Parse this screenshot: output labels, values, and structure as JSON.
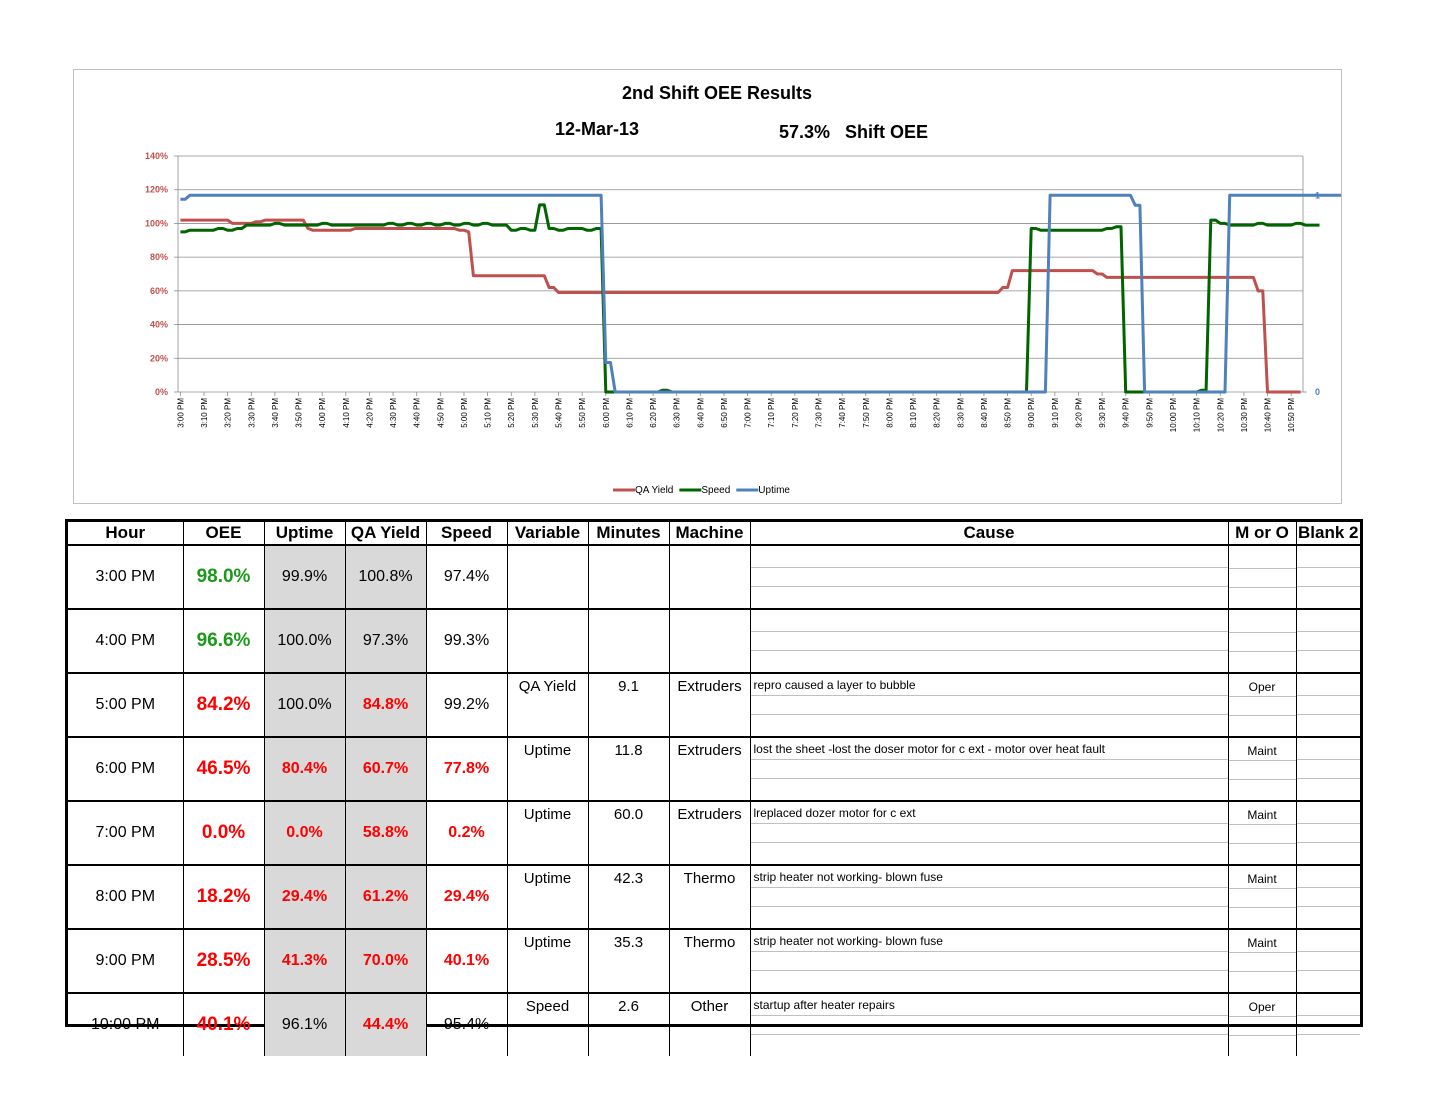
{
  "chart_data": {
    "type": "line",
    "title": "2nd  Shift OEE Results",
    "date": "12-Mar-13",
    "shift_oee_text": "57.3%   Shift OEE",
    "y_left_ticks": [
      "0%",
      "20%",
      "40%",
      "60%",
      "80%",
      "100%",
      "120%",
      "140%"
    ],
    "y_left_range": [
      0,
      1.4
    ],
    "y_right_ticks": [
      "0",
      "1"
    ],
    "y_right_range": [
      0,
      1.2
    ],
    "x_start": "3:00 PM",
    "x_end": "10:55 PM",
    "x_ticks": [
      "3:00 PM",
      "3:10 PM",
      "3:20 PM",
      "3:30 PM",
      "3:40 PM",
      "3:50 PM",
      "4:00 PM",
      "4:10 PM",
      "4:20 PM",
      "4:30 PM",
      "4:40 PM",
      "4:50 PM",
      "5:00 PM",
      "5:10 PM",
      "5:20 PM",
      "5:30 PM",
      "5:40 PM",
      "5:50 PM",
      "6:00 PM",
      "6:10 PM",
      "6:20 PM",
      "6:30 PM",
      "6:40 PM",
      "6:50 PM",
      "7:00 PM",
      "7:10 PM",
      "7:20 PM",
      "7:30 PM",
      "7:40 PM",
      "7:50 PM",
      "8:00 PM",
      "8:10 PM",
      "8:20 PM",
      "8:30 PM",
      "8:40 PM",
      "8:50 PM",
      "9:00 PM",
      "9:10 PM",
      "9:20 PM",
      "9:30 PM",
      "9:40 PM",
      "9:50 PM",
      "10:00 PM",
      "10:10 PM",
      "10:20 PM",
      "10:30 PM",
      "10:40 PM",
      "10:50 PM"
    ],
    "gridlines": true,
    "legend_position": "bottom",
    "series": [
      {
        "name": "QA Yield",
        "color": "#c0504d",
        "axis": "left",
        "values": [
          1.02,
          1.02,
          1.02,
          1.02,
          1.02,
          1.02,
          1.02,
          1.02,
          1.02,
          1.02,
          1.02,
          1.0,
          1.0,
          1.0,
          1.0,
          1.0,
          1.01,
          1.01,
          1.02,
          1.02,
          1.02,
          1.02,
          1.02,
          1.02,
          1.02,
          1.02,
          1.02,
          0.97,
          0.96,
          0.96,
          0.96,
          0.96,
          0.96,
          0.96,
          0.96,
          0.96,
          0.96,
          0.97,
          0.97,
          0.97,
          0.97,
          0.97,
          0.97,
          0.97,
          0.97,
          0.97,
          0.97,
          0.97,
          0.97,
          0.97,
          0.97,
          0.97,
          0.97,
          0.97,
          0.97,
          0.97,
          0.97,
          0.97,
          0.97,
          0.96,
          0.96,
          0.95,
          0.69,
          0.69,
          0.69,
          0.69,
          0.69,
          0.69,
          0.69,
          0.69,
          0.69,
          0.69,
          0.69,
          0.69,
          0.69,
          0.69,
          0.69,
          0.69,
          0.62,
          0.62,
          0.59,
          0.59,
          0.59,
          0.59,
          0.59,
          0.59,
          0.59,
          0.59,
          0.59,
          0.59,
          0.59,
          0.59,
          0.59,
          0.59,
          0.59,
          0.59,
          0.59,
          0.59,
          0.59,
          0.59,
          0.59,
          0.59,
          0.59,
          0.59,
          0.59,
          0.59,
          0.59,
          0.59,
          0.59,
          0.59,
          0.59,
          0.59,
          0.59,
          0.59,
          0.59,
          0.59,
          0.59,
          0.59,
          0.59,
          0.59,
          0.59,
          0.59,
          0.59,
          0.59,
          0.59,
          0.59,
          0.59,
          0.59,
          0.59,
          0.59,
          0.59,
          0.59,
          0.59,
          0.59,
          0.59,
          0.59,
          0.59,
          0.59,
          0.59,
          0.59,
          0.59,
          0.59,
          0.59,
          0.59,
          0.59,
          0.59,
          0.59,
          0.59,
          0.59,
          0.59,
          0.59,
          0.59,
          0.59,
          0.59,
          0.59,
          0.59,
          0.59,
          0.59,
          0.59,
          0.59,
          0.59,
          0.59,
          0.59,
          0.59,
          0.59,
          0.59,
          0.59,
          0.59,
          0.59,
          0.59,
          0.59,
          0.59,
          0.59,
          0.59,
          0.62,
          0.62,
          0.72,
          0.72,
          0.72,
          0.72,
          0.72,
          0.72,
          0.72,
          0.72,
          0.72,
          0.72,
          0.72,
          0.72,
          0.72,
          0.72,
          0.72,
          0.72,
          0.72,
          0.72,
          0.7,
          0.7,
          0.68,
          0.68,
          0.68,
          0.68,
          0.68,
          0.68,
          0.68,
          0.68,
          0.68,
          0.68,
          0.68,
          0.68,
          0.68,
          0.68,
          0.68,
          0.68,
          0.68,
          0.68,
          0.68,
          0.68,
          0.68,
          0.68,
          0.68,
          0.68,
          0.68,
          0.68,
          0.68,
          0.68,
          0.68,
          0.68,
          0.68,
          0.68,
          0.6,
          0.6,
          0.0,
          0.0,
          0.0,
          0.0,
          0.0,
          0.0,
          0.0,
          0.0
        ]
      },
      {
        "name": "Speed",
        "color": "#006400",
        "axis": "left",
        "values": [
          0.95,
          0.95,
          0.96,
          0.96,
          0.96,
          0.96,
          0.96,
          0.96,
          0.97,
          0.97,
          0.96,
          0.96,
          0.97,
          0.97,
          0.99,
          0.99,
          0.99,
          0.99,
          0.99,
          0.99,
          1.0,
          1.0,
          0.99,
          0.99,
          0.99,
          0.99,
          0.99,
          0.99,
          0.99,
          0.99,
          1.0,
          1.0,
          0.99,
          0.99,
          0.99,
          0.99,
          0.99,
          0.99,
          0.99,
          0.99,
          0.99,
          0.99,
          0.99,
          0.99,
          1.0,
          1.0,
          0.99,
          0.99,
          1.0,
          1.0,
          0.99,
          0.99,
          1.0,
          1.0,
          0.99,
          0.99,
          1.0,
          1.0,
          0.99,
          0.99,
          1.0,
          1.0,
          0.99,
          0.99,
          1.0,
          1.0,
          0.99,
          0.99,
          0.99,
          0.99,
          0.96,
          0.96,
          0.97,
          0.97,
          0.96,
          0.96,
          1.11,
          1.11,
          0.97,
          0.97,
          0.96,
          0.96,
          0.97,
          0.97,
          0.97,
          0.97,
          0.96,
          0.96,
          0.97,
          0.97,
          0.0,
          0.0,
          0.0,
          0.0,
          0.0,
          0.0,
          0.0,
          0.0,
          0.0,
          0.0,
          0.0,
          0.0,
          0.01,
          0.01,
          0.0,
          0.0,
          0.0,
          0.0,
          0.0,
          0.0,
          0.0,
          0.0,
          0.0,
          0.0,
          0.0,
          0.0,
          0.0,
          0.0,
          0.0,
          0.0,
          0.0,
          0.0,
          0.0,
          0.0,
          0.0,
          0.0,
          0.0,
          0.0,
          0.0,
          0.0,
          0.0,
          0.0,
          0.0,
          0.0,
          0.0,
          0.0,
          0.0,
          0.0,
          0.0,
          0.0,
          0.0,
          0.0,
          0.0,
          0.0,
          0.0,
          0.0,
          0.0,
          0.0,
          0.0,
          0.0,
          0.0,
          0.0,
          0.0,
          0.0,
          0.0,
          0.0,
          0.0,
          0.0,
          0.0,
          0.0,
          0.0,
          0.0,
          0.0,
          0.0,
          0.0,
          0.0,
          0.0,
          0.0,
          0.0,
          0.0,
          0.0,
          0.0,
          0.0,
          0.0,
          0.0,
          0.0,
          0.0,
          0.0,
          0.0,
          0.0,
          0.97,
          0.97,
          0.96,
          0.96,
          0.96,
          0.96,
          0.96,
          0.96,
          0.96,
          0.96,
          0.96,
          0.96,
          0.96,
          0.96,
          0.96,
          0.96,
          0.97,
          0.97,
          0.98,
          0.98,
          0.0,
          0.0,
          0.0,
          0.0,
          0.0,
          0.0,
          0.0,
          0.0,
          0.0,
          0.0,
          0.0,
          0.0,
          0.0,
          0.0,
          0.0,
          0.0,
          0.01,
          0.01,
          1.02,
          1.02,
          1.0,
          1.0,
          0.99,
          0.99,
          0.99,
          0.99,
          0.99,
          0.99,
          1.0,
          1.0,
          0.99,
          0.99,
          0.99,
          0.99,
          0.99,
          0.99,
          1.0,
          1.0,
          0.99,
          0.99,
          0.99,
          0.99
        ]
      },
      {
        "name": "Uptime",
        "color": "#4f81bd",
        "axis": "right",
        "values": [
          0.98,
          0.98,
          1.0,
          1.0,
          1.0,
          1.0,
          1.0,
          1.0,
          1.0,
          1.0,
          1.0,
          1.0,
          1.0,
          1.0,
          1.0,
          1.0,
          1.0,
          1.0,
          1.0,
          1.0,
          1.0,
          1.0,
          1.0,
          1.0,
          1.0,
          1.0,
          1.0,
          1.0,
          1.0,
          1.0,
          1.0,
          1.0,
          1.0,
          1.0,
          1.0,
          1.0,
          1.0,
          1.0,
          1.0,
          1.0,
          1.0,
          1.0,
          1.0,
          1.0,
          1.0,
          1.0,
          1.0,
          1.0,
          1.0,
          1.0,
          1.0,
          1.0,
          1.0,
          1.0,
          1.0,
          1.0,
          1.0,
          1.0,
          1.0,
          1.0,
          1.0,
          1.0,
          1.0,
          1.0,
          1.0,
          1.0,
          1.0,
          1.0,
          1.0,
          1.0,
          1.0,
          1.0,
          1.0,
          1.0,
          1.0,
          1.0,
          1.0,
          1.0,
          1.0,
          1.0,
          1.0,
          1.0,
          1.0,
          1.0,
          1.0,
          1.0,
          1.0,
          1.0,
          1.0,
          1.0,
          0.15,
          0.15,
          0.0,
          0.0,
          0.0,
          0.0,
          0.0,
          0.0,
          0.0,
          0.0,
          0.0,
          0.0,
          0.0,
          0.0,
          0.0,
          0.0,
          0.0,
          0.0,
          0.0,
          0.0,
          0.0,
          0.0,
          0.0,
          0.0,
          0.0,
          0.0,
          0.0,
          0.0,
          0.0,
          0.0,
          0.0,
          0.0,
          0.0,
          0.0,
          0.0,
          0.0,
          0.0,
          0.0,
          0.0,
          0.0,
          0.0,
          0.0,
          0.0,
          0.0,
          0.0,
          0.0,
          0.0,
          0.0,
          0.0,
          0.0,
          0.0,
          0.0,
          0.0,
          0.0,
          0.0,
          0.0,
          0.0,
          0.0,
          0.0,
          0.0,
          0.0,
          0.0,
          0.0,
          0.0,
          0.0,
          0.0,
          0.0,
          0.0,
          0.0,
          0.0,
          0.0,
          0.0,
          0.0,
          0.0,
          0.0,
          0.0,
          0.0,
          0.0,
          0.0,
          0.0,
          0.0,
          0.0,
          0.0,
          0.0,
          0.0,
          0.0,
          0.0,
          0.0,
          0.0,
          0.0,
          0.0,
          0.0,
          0.0,
          0.0,
          1.0,
          1.0,
          1.0,
          1.0,
          1.0,
          1.0,
          1.0,
          1.0,
          1.0,
          1.0,
          1.0,
          1.0,
          1.0,
          1.0,
          1.0,
          1.0,
          1.0,
          1.0,
          0.95,
          0.95,
          0.0,
          0.0,
          0.0,
          0.0,
          0.0,
          0.0,
          0.0,
          0.0,
          0.0,
          0.0,
          0.0,
          0.0,
          0.0,
          0.0,
          0.0,
          0.0,
          0.0,
          0.0,
          1.0,
          1.0,
          1.0,
          1.0,
          1.0,
          1.0,
          1.0,
          1.0,
          1.0,
          1.0,
          1.0,
          1.0,
          1.0,
          1.0,
          1.0,
          1.0,
          1.0,
          1.0,
          1.0,
          1.0,
          1.0,
          1.0,
          1.0,
          1.0,
          1.0,
          1.0,
          1.0,
          1.0
        ]
      }
    ]
  },
  "colors": {
    "green_text": "#1a9a1a",
    "red_text": "#ff0000",
    "gray_cell": "#d9d9d9"
  },
  "table": {
    "headers": [
      "Hour",
      "OEE",
      "Uptime",
      "QA Yield",
      "Speed",
      "Variable",
      "Minutes",
      "Machine",
      "Cause",
      "M or O",
      "Blank 2"
    ],
    "rows": [
      {
        "hour": "3:00 PM",
        "oee": "98.0%",
        "oee_status": "good",
        "uptime": "99.9%",
        "uptime_bad": false,
        "qa": "100.8%",
        "qa_bad": false,
        "speed": "97.4%",
        "speed_bad": false,
        "variable": "",
        "minutes": "",
        "machine": "",
        "cause": "",
        "mo": ""
      },
      {
        "hour": "4:00 PM",
        "oee": "96.6%",
        "oee_status": "good",
        "uptime": "100.0%",
        "uptime_bad": false,
        "qa": "97.3%",
        "qa_bad": false,
        "speed": "99.3%",
        "speed_bad": false,
        "variable": "",
        "minutes": "",
        "machine": "",
        "cause": "",
        "mo": ""
      },
      {
        "hour": "5:00 PM",
        "oee": "84.2%",
        "oee_status": "bad",
        "uptime": "100.0%",
        "uptime_bad": false,
        "qa": "84.8%",
        "qa_bad": true,
        "speed": "99.2%",
        "speed_bad": false,
        "variable": "QA Yield",
        "minutes": "9.1",
        "machine": "Extruders",
        "cause": "repro caused a layer to bubble",
        "mo": "Oper"
      },
      {
        "hour": "6:00 PM",
        "oee": "46.5%",
        "oee_status": "bad",
        "uptime": "80.4%",
        "uptime_bad": true,
        "qa": "60.7%",
        "qa_bad": true,
        "speed": "77.8%",
        "speed_bad": true,
        "variable": "Uptime",
        "minutes": "11.8",
        "machine": "Extruders",
        "cause": "lost the sheet -lost the doser motor for c ext - motor over heat fault",
        "mo": "Maint"
      },
      {
        "hour": "7:00 PM",
        "oee": "0.0%",
        "oee_status": "bad",
        "uptime": "0.0%",
        "uptime_bad": true,
        "qa": "58.8%",
        "qa_bad": true,
        "speed": "0.2%",
        "speed_bad": true,
        "variable": "Uptime",
        "minutes": "60.0",
        "machine": "Extruders",
        "cause": "lreplaced dozer motor for c ext",
        "mo": "Maint"
      },
      {
        "hour": "8:00 PM",
        "oee": "18.2%",
        "oee_status": "bad",
        "uptime": "29.4%",
        "uptime_bad": true,
        "qa": "61.2%",
        "qa_bad": true,
        "speed": "29.4%",
        "speed_bad": true,
        "variable": "Uptime",
        "minutes": "42.3",
        "machine": "Thermo",
        "cause": "strip heater not working- blown fuse",
        "mo": "Maint"
      },
      {
        "hour": "9:00 PM",
        "oee": "28.5%",
        "oee_status": "bad",
        "uptime": "41.3%",
        "uptime_bad": true,
        "qa": "70.0%",
        "qa_bad": true,
        "speed": "40.1%",
        "speed_bad": true,
        "variable": "Uptime",
        "minutes": "35.3",
        "machine": "Thermo",
        "cause": "strip heater not working- blown fuse",
        "mo": "Maint"
      },
      {
        "hour": "10:00 PM",
        "oee": "40.1%",
        "oee_status": "bad",
        "uptime": "96.1%",
        "uptime_bad": false,
        "qa": "44.4%",
        "qa_bad": true,
        "speed": "95.4%",
        "speed_bad": false,
        "variable": "Speed",
        "minutes": "2.6",
        "machine": "Other",
        "cause": "startup after heater repairs",
        "mo": "Oper"
      }
    ]
  }
}
